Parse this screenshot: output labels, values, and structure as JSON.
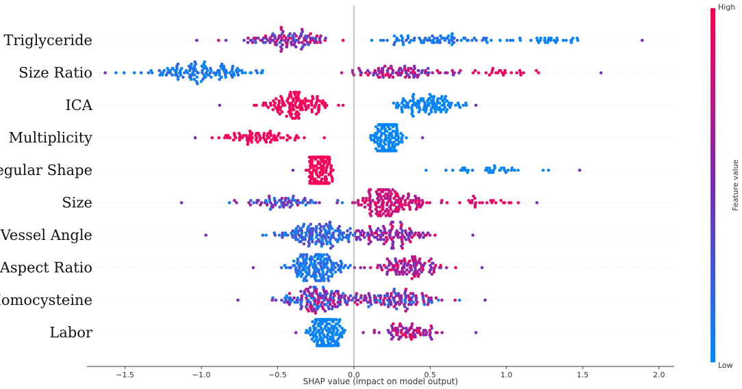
{
  "chart_data": {
    "type": "scatter",
    "subtype": "shap-beeswarm",
    "xlabel": "SHAP value (impact on model output)",
    "xlim": [
      -1.75,
      2.1
    ],
    "xticks": [
      -1.5,
      -1.0,
      -0.5,
      0.0,
      0.5,
      1.0,
      1.5,
      2.0
    ],
    "xtick_labels": [
      "−1.5",
      "−1.0",
      "−0.5",
      "0.0",
      "0.5",
      "1.0",
      "1.5",
      "2.0"
    ],
    "grid": false,
    "colorbar": {
      "label": "Feature value",
      "high_label": "High",
      "low_label": "Low",
      "high_color": "#ff0052",
      "low_color": "#008bfb"
    },
    "features": [
      {
        "name": "Triglyceride",
        "min": -1.03,
        "max": 1.89,
        "clusters": [
          {
            "center": -0.45,
            "spread": 0.3,
            "count": 110,
            "value": 0.6,
            "valueJitter": 0.4
          },
          {
            "center": 0.55,
            "spread": 0.35,
            "count": 75,
            "value": 0.1,
            "valueJitter": 0.15
          },
          {
            "center": 1.25,
            "spread": 0.3,
            "count": 30,
            "value": 0.05,
            "valueJitter": 0.05
          }
        ]
      },
      {
        "name": "Size Ratio",
        "min": -1.63,
        "max": 1.62,
        "clusters": [
          {
            "center": -1.0,
            "spread": 0.35,
            "count": 130,
            "value": 0.1,
            "valueJitter": 0.12
          },
          {
            "center": 0.3,
            "spread": 0.3,
            "count": 95,
            "value": 0.65,
            "valueJitter": 0.3
          },
          {
            "center": 0.95,
            "spread": 0.25,
            "count": 25,
            "value": 0.92,
            "valueJitter": 0.08
          }
        ]
      },
      {
        "name": "ICA",
        "min": -0.88,
        "max": 0.8,
        "clusters": [
          {
            "center": -0.4,
            "spread": 0.22,
            "count": 130,
            "value": 0.95,
            "valueJitter": 0.05
          },
          {
            "center": 0.48,
            "spread": 0.2,
            "count": 110,
            "value": 0.04,
            "valueJitter": 0.04
          }
        ]
      },
      {
        "name": "Multiplicity",
        "min": -1.04,
        "max": 0.45,
        "clusters": [
          {
            "center": -0.6,
            "spread": 0.25,
            "count": 75,
            "value": 0.96,
            "valueJitter": 0.04
          },
          {
            "center": 0.22,
            "spread": 0.08,
            "count": 170,
            "value": 0.03,
            "valueJitter": 0.03
          }
        ]
      },
      {
        "name": "Regular Shape",
        "min": -0.4,
        "max": 1.48,
        "clusters": [
          {
            "center": -0.22,
            "spread": 0.07,
            "count": 220,
            "value": 0.97,
            "valueJitter": 0.03
          },
          {
            "center": 0.9,
            "spread": 0.28,
            "count": 35,
            "value": 0.04,
            "valueJitter": 0.04
          }
        ]
      },
      {
        "name": "Size",
        "min": -1.13,
        "max": 1.2,
        "clusters": [
          {
            "center": -0.45,
            "spread": 0.3,
            "count": 70,
            "value": 0.35,
            "valueJitter": 0.35
          },
          {
            "center": 0.25,
            "spread": 0.2,
            "count": 160,
            "value": 0.82,
            "valueJitter": 0.15
          },
          {
            "center": 0.85,
            "spread": 0.2,
            "count": 25,
            "value": 0.9,
            "valueJitter": 0.08
          }
        ]
      },
      {
        "name": "Vessel Angle",
        "min": -0.97,
        "max": 0.78,
        "clusters": [
          {
            "center": -0.25,
            "spread": 0.25,
            "count": 150,
            "value": 0.2,
            "valueJitter": 0.2
          },
          {
            "center": 0.25,
            "spread": 0.22,
            "count": 110,
            "value": 0.65,
            "valueJitter": 0.3
          }
        ]
      },
      {
        "name": "Aspect Ratio",
        "min": -0.66,
        "max": 0.84,
        "clusters": [
          {
            "center": -0.25,
            "spread": 0.18,
            "count": 160,
            "value": 0.12,
            "valueJitter": 0.12
          },
          {
            "center": 0.35,
            "spread": 0.25,
            "count": 110,
            "value": 0.7,
            "valueJitter": 0.3
          }
        ]
      },
      {
        "name": "Homocysteine",
        "min": -0.76,
        "max": 0.86,
        "clusters": [
          {
            "center": -0.2,
            "spread": 0.25,
            "count": 160,
            "value": 0.45,
            "valueJitter": 0.45
          },
          {
            "center": 0.3,
            "spread": 0.25,
            "count": 110,
            "value": 0.5,
            "valueJitter": 0.45
          }
        ]
      },
      {
        "name": "Labor",
        "min": -0.38,
        "max": 0.8,
        "clusters": [
          {
            "center": -0.18,
            "spread": 0.1,
            "count": 190,
            "value": 0.04,
            "valueJitter": 0.04
          },
          {
            "center": 0.35,
            "spread": 0.2,
            "count": 75,
            "value": 0.7,
            "valueJitter": 0.3
          }
        ]
      }
    ]
  }
}
